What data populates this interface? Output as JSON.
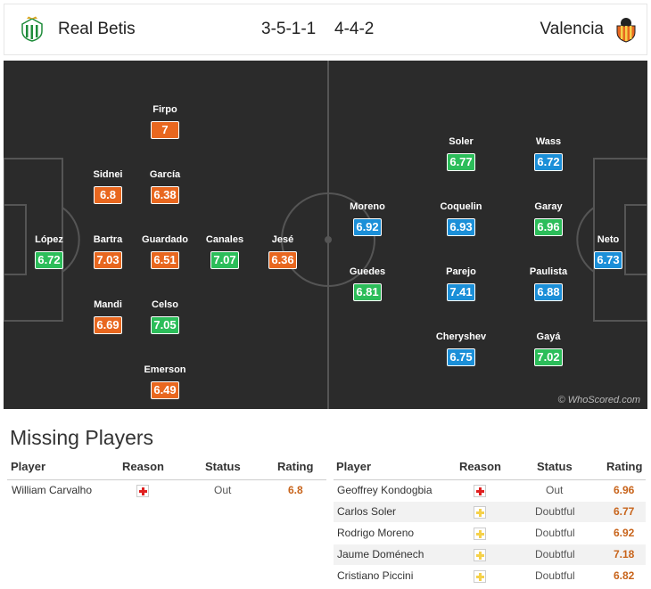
{
  "header": {
    "home_team": "Real Betis",
    "home_formation": "3-5-1-1",
    "away_formation": "4-4-2",
    "away_team": "Valencia",
    "colors": {
      "home_logo": "#1e8c3a",
      "away_logo": "#e8671f"
    }
  },
  "pitch": {
    "watermark": "© WhoScored.com",
    "home_players": [
      {
        "name": "López",
        "rating": "6.72",
        "rating_color": "green"
      },
      {
        "name": "Sidnei",
        "rating": "6.8",
        "rating_color": "orange"
      },
      {
        "name": "Bartra",
        "rating": "7.03",
        "rating_color": "orange"
      },
      {
        "name": "Mandi",
        "rating": "6.69",
        "rating_color": "orange"
      },
      {
        "name": "Firpo",
        "rating": "7",
        "rating_color": "orange"
      },
      {
        "name": "García",
        "rating": "6.38",
        "rating_color": "orange"
      },
      {
        "name": "Guardado",
        "rating": "6.51",
        "rating_color": "orange"
      },
      {
        "name": "Celso",
        "rating": "7.05",
        "rating_color": "green"
      },
      {
        "name": "Emerson",
        "rating": "6.49",
        "rating_color": "orange"
      },
      {
        "name": "Canales",
        "rating": "7.07",
        "rating_color": "green"
      },
      {
        "name": "Jesé",
        "rating": "6.36",
        "rating_color": "orange"
      }
    ],
    "away_players": [
      {
        "name": "Moreno",
        "rating": "6.92",
        "rating_color": "blue"
      },
      {
        "name": "Guedes",
        "rating": "6.81",
        "rating_color": "green"
      },
      {
        "name": "Soler",
        "rating": "6.77",
        "rating_color": "green"
      },
      {
        "name": "Coquelin",
        "rating": "6.93",
        "rating_color": "blue"
      },
      {
        "name": "Parejo",
        "rating": "7.41",
        "rating_color": "blue"
      },
      {
        "name": "Cheryshev",
        "rating": "6.75",
        "rating_color": "blue"
      },
      {
        "name": "Wass",
        "rating": "6.72",
        "rating_color": "blue"
      },
      {
        "name": "Garay",
        "rating": "6.96",
        "rating_color": "green"
      },
      {
        "name": "Paulista",
        "rating": "6.88",
        "rating_color": "blue"
      },
      {
        "name": "Gayá",
        "rating": "7.02",
        "rating_color": "green"
      },
      {
        "name": "Neto",
        "rating": "6.73",
        "rating_color": "blue"
      }
    ],
    "rating_colors": {
      "orange": "#e8671f",
      "green": "#2cbd5a",
      "blue": "#1b8fd8"
    }
  },
  "missing": {
    "title": "Missing Players",
    "columns": {
      "player": "Player",
      "reason": "Reason",
      "status": "Status",
      "rating": "Rating"
    },
    "home": [
      {
        "player": "William Carvalho",
        "reason_icon": "injury-icon",
        "status": "Out",
        "rating": "6.8"
      }
    ],
    "away": [
      {
        "player": "Geoffrey Kondogbia",
        "reason_icon": "injury-icon",
        "status": "Out",
        "rating": "6.96"
      },
      {
        "player": "Carlos Soler",
        "reason_icon": "doubtful-icon",
        "status": "Doubtful",
        "rating": "6.77"
      },
      {
        "player": "Rodrigo Moreno",
        "reason_icon": "doubtful-icon",
        "status": "Doubtful",
        "rating": "6.92"
      },
      {
        "player": "Jaume Doménech",
        "reason_icon": "doubtful-icon",
        "status": "Doubtful",
        "rating": "7.18"
      },
      {
        "player": "Cristiano Piccini",
        "reason_icon": "doubtful-icon",
        "status": "Doubtful",
        "rating": "6.82"
      }
    ]
  }
}
